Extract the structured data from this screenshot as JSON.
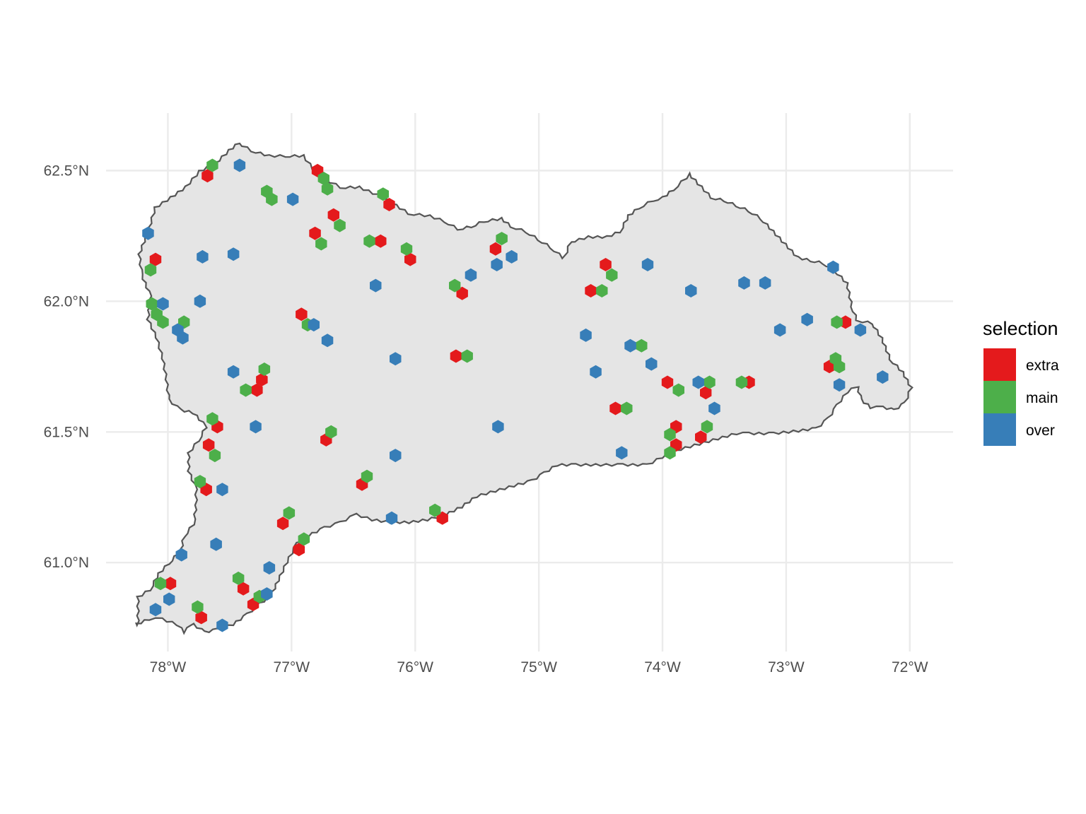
{
  "legend": {
    "title": "selection",
    "items": [
      {
        "label": "extra",
        "color": "#e41a1c"
      },
      {
        "label": "main",
        "color": "#4daf4a"
      },
      {
        "label": "over",
        "color": "#377eb8"
      }
    ]
  },
  "axes": {
    "x_ticks": [
      {
        "value": -78,
        "label": "78°W"
      },
      {
        "value": -77,
        "label": "77°W"
      },
      {
        "value": -76,
        "label": "76°W"
      },
      {
        "value": -75,
        "label": "75°W"
      },
      {
        "value": -74,
        "label": "74°W"
      },
      {
        "value": -73,
        "label": "73°W"
      },
      {
        "value": -72,
        "label": "72°W"
      }
    ],
    "y_ticks": [
      {
        "value": 61.0,
        "label": "61.0°N"
      },
      {
        "value": 61.5,
        "label": "61.5°N"
      },
      {
        "value": 62.0,
        "label": "62.0°N"
      },
      {
        "value": 62.5,
        "label": "62.5°N"
      }
    ],
    "grid": true
  },
  "chart_data": {
    "type": "scatter",
    "xlim": [
      -78.5,
      -71.65
    ],
    "ylim": [
      60.66,
      62.72
    ],
    "boundary": [
      [
        -78.25,
        60.76
      ],
      [
        -78.25,
        60.87
      ],
      [
        -78.15,
        60.9
      ],
      [
        -78.08,
        60.96
      ],
      [
        -78.0,
        61.0
      ],
      [
        -77.9,
        61.05
      ],
      [
        -77.88,
        61.1
      ],
      [
        -77.8,
        61.15
      ],
      [
        -77.78,
        61.22
      ],
      [
        -77.78,
        61.28
      ],
      [
        -77.84,
        61.35
      ],
      [
        -77.84,
        61.42
      ],
      [
        -77.76,
        61.47
      ],
      [
        -77.7,
        61.52
      ],
      [
        -77.8,
        61.57
      ],
      [
        -77.9,
        61.58
      ],
      [
        -78.0,
        61.62
      ],
      [
        -78.02,
        61.7
      ],
      [
        -78.05,
        61.78
      ],
      [
        -78.1,
        61.86
      ],
      [
        -78.17,
        61.93
      ],
      [
        -78.15,
        62.02
      ],
      [
        -78.22,
        62.1
      ],
      [
        -78.24,
        62.18
      ],
      [
        -78.16,
        62.28
      ],
      [
        -78.11,
        62.36
      ],
      [
        -77.98,
        62.4
      ],
      [
        -77.86,
        62.44
      ],
      [
        -77.75,
        62.5
      ],
      [
        -77.62,
        62.53
      ],
      [
        -77.51,
        62.58
      ],
      [
        -77.43,
        62.61
      ],
      [
        -77.32,
        62.58
      ],
      [
        -77.18,
        62.56
      ],
      [
        -77.05,
        62.56
      ],
      [
        -76.9,
        62.56
      ],
      [
        -76.82,
        62.51
      ],
      [
        -76.72,
        62.47
      ],
      [
        -76.6,
        62.44
      ],
      [
        -76.45,
        62.44
      ],
      [
        -76.3,
        62.41
      ],
      [
        -76.15,
        62.37
      ],
      [
        -76.05,
        62.34
      ],
      [
        -75.88,
        62.33
      ],
      [
        -75.76,
        62.31
      ],
      [
        -75.65,
        62.28
      ],
      [
        -75.55,
        62.29
      ],
      [
        -75.45,
        62.31
      ],
      [
        -75.3,
        62.32
      ],
      [
        -75.22,
        62.29
      ],
      [
        -75.1,
        62.27
      ],
      [
        -75.0,
        62.24
      ],
      [
        -74.9,
        62.21
      ],
      [
        -74.8,
        62.17
      ],
      [
        -74.75,
        62.23
      ],
      [
        -74.6,
        62.25
      ],
      [
        -74.45,
        62.25
      ],
      [
        -74.35,
        62.27
      ],
      [
        -74.28,
        62.33
      ],
      [
        -74.2,
        62.36
      ],
      [
        -74.08,
        62.39
      ],
      [
        -74.0,
        62.4
      ],
      [
        -73.92,
        62.43
      ],
      [
        -73.85,
        62.46
      ],
      [
        -73.78,
        62.49
      ],
      [
        -73.68,
        62.44
      ],
      [
        -73.6,
        62.4
      ],
      [
        -73.5,
        62.39
      ],
      [
        -73.4,
        62.37
      ],
      [
        -73.3,
        62.35
      ],
      [
        -73.2,
        62.32
      ],
      [
        -73.1,
        62.27
      ],
      [
        -73.0,
        62.22
      ],
      [
        -72.9,
        62.17
      ],
      [
        -72.8,
        62.16
      ],
      [
        -72.7,
        62.15
      ],
      [
        -72.6,
        62.12
      ],
      [
        -72.5,
        62.07
      ],
      [
        -72.46,
        61.98
      ],
      [
        -72.42,
        61.93
      ],
      [
        -72.3,
        61.92
      ],
      [
        -72.22,
        61.86
      ],
      [
        -72.15,
        61.78
      ],
      [
        -72.05,
        61.73
      ],
      [
        -71.98,
        61.67
      ],
      [
        -72.03,
        61.61
      ],
      [
        -72.12,
        61.58
      ],
      [
        -72.22,
        61.59
      ],
      [
        -72.32,
        61.59
      ],
      [
        -72.4,
        61.62
      ],
      [
        -72.43,
        61.67
      ],
      [
        -72.5,
        61.65
      ],
      [
        -72.58,
        61.6
      ],
      [
        -72.65,
        61.55
      ],
      [
        -72.75,
        61.51
      ],
      [
        -72.9,
        61.5
      ],
      [
        -73.1,
        61.49
      ],
      [
        -73.3,
        61.49
      ],
      [
        -73.4,
        61.49
      ],
      [
        -73.55,
        61.47
      ],
      [
        -73.7,
        61.45
      ],
      [
        -73.85,
        61.43
      ],
      [
        -74.0,
        61.4
      ],
      [
        -74.12,
        61.37
      ],
      [
        -74.32,
        61.37
      ],
      [
        -74.5,
        61.37
      ],
      [
        -74.7,
        61.37
      ],
      [
        -74.85,
        61.37
      ],
      [
        -74.95,
        61.34
      ],
      [
        -75.05,
        61.31
      ],
      [
        -75.2,
        61.29
      ],
      [
        -75.35,
        61.27
      ],
      [
        -75.5,
        61.25
      ],
      [
        -75.62,
        61.21
      ],
      [
        -75.75,
        61.18
      ],
      [
        -75.9,
        61.16
      ],
      [
        -76.05,
        61.15
      ],
      [
        -76.2,
        61.15
      ],
      [
        -76.35,
        61.16
      ],
      [
        -76.48,
        61.18
      ],
      [
        -76.6,
        61.15
      ],
      [
        -76.73,
        61.13
      ],
      [
        -76.86,
        61.1
      ],
      [
        -76.95,
        61.07
      ],
      [
        -77.03,
        61.0
      ],
      [
        -77.1,
        60.93
      ],
      [
        -77.16,
        60.87
      ],
      [
        -77.25,
        60.84
      ],
      [
        -77.35,
        60.8
      ],
      [
        -77.47,
        60.76
      ],
      [
        -77.6,
        60.74
      ],
      [
        -77.7,
        60.73
      ],
      [
        -77.8,
        60.76
      ],
      [
        -77.87,
        60.73
      ],
      [
        -77.93,
        60.76
      ],
      [
        -78.05,
        60.78
      ],
      [
        -78.15,
        60.78
      ]
    ],
    "series": [
      {
        "name": "extra",
        "color": "#e41a1c",
        "points": [
          [
            -77.68,
            62.48
          ],
          [
            -76.79,
            62.5
          ],
          [
            -76.21,
            62.37
          ],
          [
            -76.66,
            62.33
          ],
          [
            -76.81,
            62.26
          ],
          [
            -76.28,
            62.23
          ],
          [
            -75.35,
            62.2
          ],
          [
            -76.04,
            62.16
          ],
          [
            -78.1,
            62.16
          ],
          [
            -74.46,
            62.14
          ],
          [
            -74.58,
            62.04
          ],
          [
            -75.62,
            62.03
          ],
          [
            -76.92,
            61.95
          ],
          [
            -75.67,
            61.79
          ],
          [
            -72.52,
            61.92
          ],
          [
            -72.65,
            61.75
          ],
          [
            -77.24,
            61.7
          ],
          [
            -77.28,
            61.66
          ],
          [
            -73.96,
            61.69
          ],
          [
            -73.3,
            61.69
          ],
          [
            -73.65,
            61.65
          ],
          [
            -74.38,
            61.59
          ],
          [
            -77.6,
            61.52
          ],
          [
            -73.89,
            61.52
          ],
          [
            -76.72,
            61.47
          ],
          [
            -73.69,
            61.48
          ],
          [
            -77.67,
            61.45
          ],
          [
            -73.89,
            61.45
          ],
          [
            -77.69,
            61.28
          ],
          [
            -76.43,
            61.3
          ],
          [
            -75.78,
            61.17
          ],
          [
            -77.07,
            61.15
          ],
          [
            -76.94,
            61.05
          ],
          [
            -77.98,
            60.92
          ],
          [
            -77.39,
            60.9
          ],
          [
            -77.31,
            60.84
          ],
          [
            -77.73,
            60.79
          ]
        ]
      },
      {
        "name": "main",
        "color": "#4daf4a",
        "points": [
          [
            -77.64,
            62.52
          ],
          [
            -76.74,
            62.47
          ],
          [
            -76.71,
            62.43
          ],
          [
            -77.2,
            62.42
          ],
          [
            -77.16,
            62.39
          ],
          [
            -76.26,
            62.41
          ],
          [
            -76.61,
            62.29
          ],
          [
            -76.76,
            62.22
          ],
          [
            -76.37,
            62.23
          ],
          [
            -75.3,
            62.24
          ],
          [
            -76.07,
            62.2
          ],
          [
            -78.14,
            62.12
          ],
          [
            -74.41,
            62.1
          ],
          [
            -75.68,
            62.06
          ],
          [
            -74.49,
            62.04
          ],
          [
            -78.13,
            61.99
          ],
          [
            -78.09,
            61.95
          ],
          [
            -78.04,
            61.92
          ],
          [
            -77.87,
            61.92
          ],
          [
            -76.87,
            61.91
          ],
          [
            -75.58,
            61.79
          ],
          [
            -74.17,
            61.83
          ],
          [
            -72.6,
            61.78
          ],
          [
            -72.57,
            61.75
          ],
          [
            -77.22,
            61.74
          ],
          [
            -77.37,
            61.66
          ],
          [
            -73.62,
            61.69
          ],
          [
            -73.36,
            61.69
          ],
          [
            -73.87,
            61.66
          ],
          [
            -74.29,
            61.59
          ],
          [
            -77.64,
            61.55
          ],
          [
            -73.64,
            61.52
          ],
          [
            -76.68,
            61.5
          ],
          [
            -73.94,
            61.49
          ],
          [
            -77.62,
            61.41
          ],
          [
            -73.94,
            61.42
          ],
          [
            -76.39,
            61.33
          ],
          [
            -77.74,
            61.31
          ],
          [
            -75.84,
            61.2
          ],
          [
            -77.02,
            61.19
          ],
          [
            -76.9,
            61.09
          ],
          [
            -77.43,
            60.94
          ],
          [
            -78.06,
            60.92
          ],
          [
            -77.26,
            60.87
          ],
          [
            -77.76,
            60.83
          ],
          [
            -72.59,
            61.92
          ]
        ]
      },
      {
        "name": "over",
        "color": "#377eb8",
        "points": [
          [
            -77.42,
            62.52
          ],
          [
            -76.99,
            62.39
          ],
          [
            -78.16,
            62.26
          ],
          [
            -77.72,
            62.17
          ],
          [
            -77.47,
            62.18
          ],
          [
            -75.22,
            62.17
          ],
          [
            -75.34,
            62.14
          ],
          [
            -75.55,
            62.1
          ],
          [
            -74.12,
            62.14
          ],
          [
            -76.32,
            62.06
          ],
          [
            -73.34,
            62.07
          ],
          [
            -73.17,
            62.07
          ],
          [
            -73.77,
            62.04
          ],
          [
            -72.62,
            62.13
          ],
          [
            -78.04,
            61.99
          ],
          [
            -77.74,
            62.0
          ],
          [
            -77.92,
            61.89
          ],
          [
            -77.88,
            61.86
          ],
          [
            -76.82,
            61.91
          ],
          [
            -76.71,
            61.85
          ],
          [
            -73.05,
            61.89
          ],
          [
            -72.83,
            61.93
          ],
          [
            -72.4,
            61.89
          ],
          [
            -74.62,
            61.87
          ],
          [
            -74.26,
            61.83
          ],
          [
            -74.09,
            61.76
          ],
          [
            -76.16,
            61.78
          ],
          [
            -77.47,
            61.73
          ],
          [
            -74.54,
            61.73
          ],
          [
            -72.22,
            61.71
          ],
          [
            -73.71,
            61.69
          ],
          [
            -72.57,
            61.68
          ],
          [
            -73.58,
            61.59
          ],
          [
            -77.29,
            61.52
          ],
          [
            -75.33,
            61.52
          ],
          [
            -76.16,
            61.41
          ],
          [
            -74.33,
            61.42
          ],
          [
            -77.56,
            61.28
          ],
          [
            -76.19,
            61.17
          ],
          [
            -77.61,
            61.07
          ],
          [
            -77.89,
            61.03
          ],
          [
            -77.18,
            60.98
          ],
          [
            -77.2,
            60.88
          ],
          [
            -77.99,
            60.86
          ],
          [
            -78.1,
            60.82
          ],
          [
            -77.56,
            60.76
          ]
        ]
      }
    ]
  }
}
